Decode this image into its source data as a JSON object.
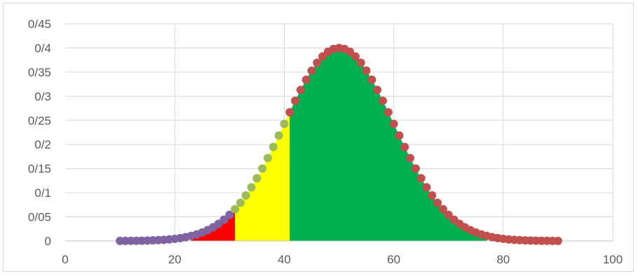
{
  "chart_data": {
    "type": "scatter",
    "title": "",
    "xlabel": "",
    "ylabel": "",
    "xlim": [
      0,
      100
    ],
    "ylim": [
      0,
      0.45
    ],
    "x_ticks": [
      0,
      20,
      40,
      60,
      80,
      100
    ],
    "x_tick_labels": [
      "0",
      "20",
      "40",
      "60",
      "80",
      "100"
    ],
    "y_ticks": [
      0,
      0.05,
      0.1,
      0.15,
      0.2,
      0.25,
      0.3,
      0.35,
      0.4,
      0.45
    ],
    "y_tick_labels": [
      "0",
      "0/05",
      "0/1",
      "0/15",
      "0/2",
      "0/25",
      "0/3",
      "0/35",
      "0/4",
      "0/45"
    ],
    "grid": "vertical and horizontal",
    "legend": "none",
    "curve": {
      "kind": "normal-shaped",
      "mean": 50,
      "spread": 10,
      "peak": 0.4,
      "x_start": 10,
      "x_end": 90,
      "step": 1
    },
    "series": [
      {
        "x_range": [
          10,
          30
        ],
        "color": "#8064a2"
      },
      {
        "x_range": [
          31,
          40
        ],
        "color": "#9bbb59"
      },
      {
        "x_range": [
          41,
          90
        ],
        "color": "#c0504d"
      }
    ],
    "shaded_regions": [
      {
        "x_range": [
          23,
          31
        ],
        "color": "#ff0000"
      },
      {
        "x_range": [
          31,
          41
        ],
        "color": "#ffff00"
      },
      {
        "x_range": [
          41,
          77
        ],
        "color": "#00b050"
      }
    ],
    "colors": {
      "grid": "#d9d9d9",
      "axis": "#bfbfbf",
      "text": "#595959"
    }
  }
}
